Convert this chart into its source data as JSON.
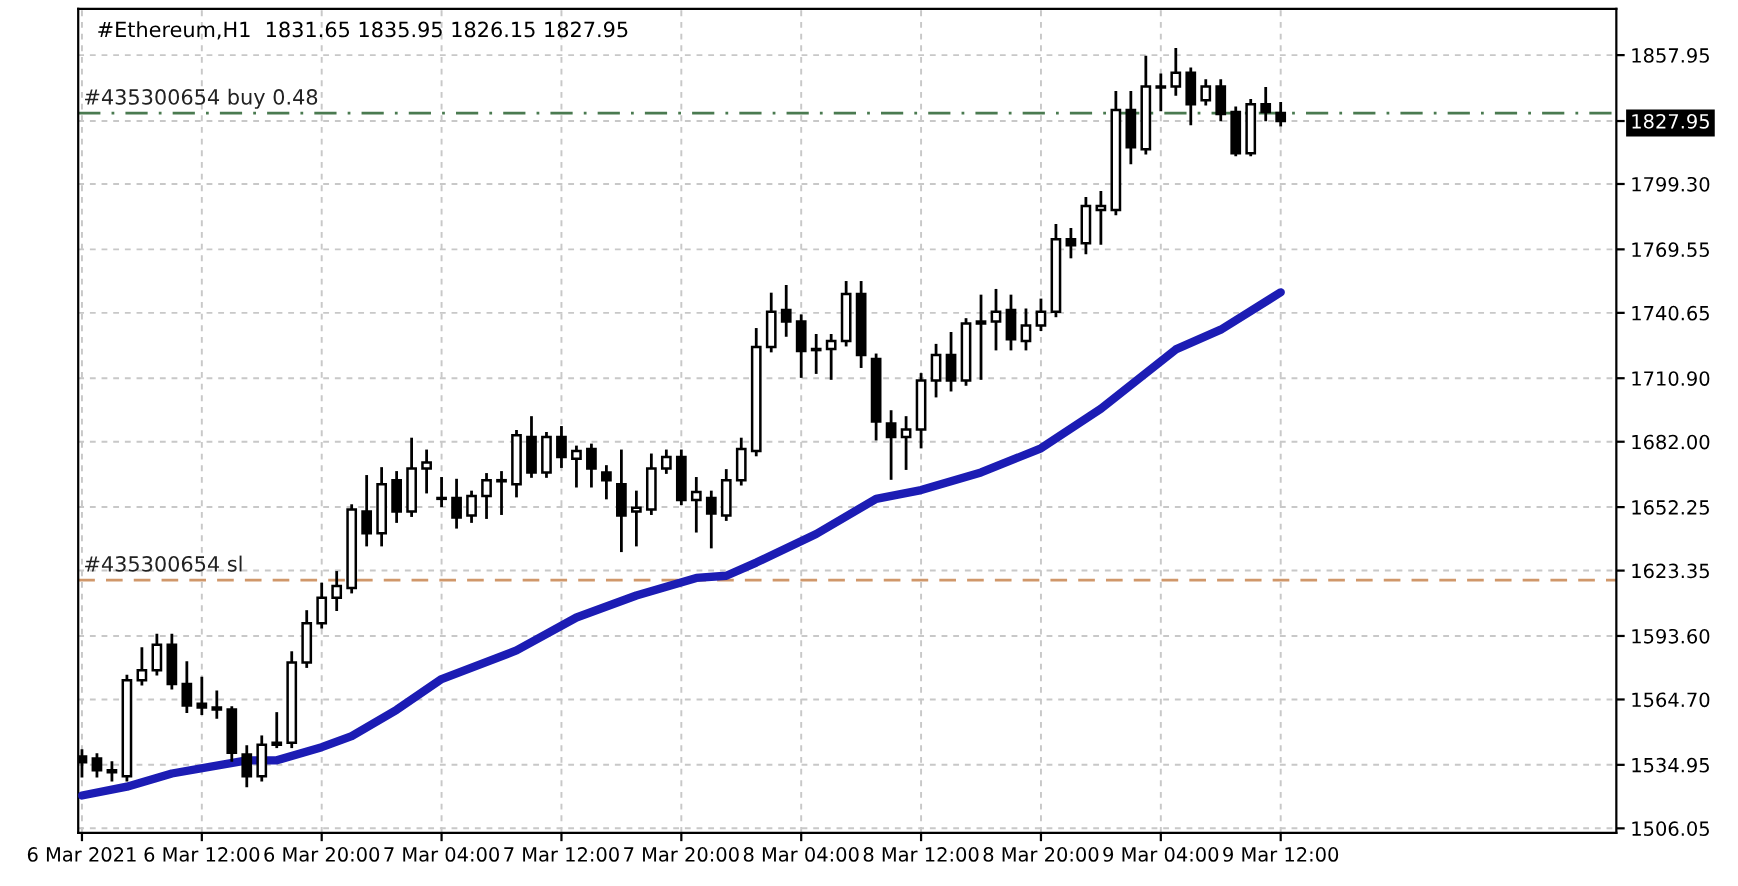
{
  "chart_data": {
    "type": "candlestick",
    "title": "#Ethereum,H1  1831.65 1835.95 1826.15 1827.95",
    "x": [
      "2021-03-06T04:00",
      "2021-03-06T05:00",
      "2021-03-06T06:00",
      "2021-03-06T07:00",
      "2021-03-06T08:00",
      "2021-03-06T09:00",
      "2021-03-06T10:00",
      "2021-03-06T11:00",
      "2021-03-06T12:00",
      "2021-03-06T13:00",
      "2021-03-06T14:00",
      "2021-03-06T15:00",
      "2021-03-06T16:00",
      "2021-03-06T17:00",
      "2021-03-06T18:00",
      "2021-03-06T19:00",
      "2021-03-06T20:00",
      "2021-03-06T21:00",
      "2021-03-06T22:00",
      "2021-03-06T23:00",
      "2021-03-07T00:00",
      "2021-03-07T01:00",
      "2021-03-07T02:00",
      "2021-03-07T03:00",
      "2021-03-07T04:00",
      "2021-03-07T05:00",
      "2021-03-07T06:00",
      "2021-03-07T07:00",
      "2021-03-07T08:00",
      "2021-03-07T09:00",
      "2021-03-07T10:00",
      "2021-03-07T11:00",
      "2021-03-07T12:00",
      "2021-03-07T13:00",
      "2021-03-07T14:00",
      "2021-03-07T15:00",
      "2021-03-07T16:00",
      "2021-03-07T17:00",
      "2021-03-07T18:00",
      "2021-03-07T19:00",
      "2021-03-07T20:00",
      "2021-03-07T21:00",
      "2021-03-07T22:00",
      "2021-03-07T23:00",
      "2021-03-08T00:00",
      "2021-03-08T01:00",
      "2021-03-08T02:00",
      "2021-03-08T03:00",
      "2021-03-08T04:00",
      "2021-03-08T05:00",
      "2021-03-08T06:00",
      "2021-03-08T07:00",
      "2021-03-08T08:00",
      "2021-03-08T09:00",
      "2021-03-08T10:00",
      "2021-03-08T11:00",
      "2021-03-08T12:00",
      "2021-03-08T13:00",
      "2021-03-08T14:00",
      "2021-03-08T15:00",
      "2021-03-08T16:00",
      "2021-03-08T17:00",
      "2021-03-08T18:00",
      "2021-03-08T19:00",
      "2021-03-08T20:00",
      "2021-03-08T21:00",
      "2021-03-08T22:00",
      "2021-03-08T23:00",
      "2021-03-09T00:00",
      "2021-03-09T01:00",
      "2021-03-09T02:00",
      "2021-03-09T03:00",
      "2021-03-09T04:00",
      "2021-03-09T05:00",
      "2021-03-09T06:00",
      "2021-03-09T07:00",
      "2021-03-09T08:00",
      "2021-03-09T09:00",
      "2021-03-09T10:00",
      "2021-03-09T11:00",
      "2021-03-09T12:00"
    ],
    "ohlc": [
      [
        1538.7,
        1541.4,
        1529.8,
        1536.1
      ],
      [
        1537.8,
        1539.6,
        1529.8,
        1532.5
      ],
      [
        1532.5,
        1536.0,
        1528.0,
        1531.6
      ],
      [
        1529.8,
        1575.3,
        1528.0,
        1573.5
      ],
      [
        1573.5,
        1587.8,
        1571.7,
        1578.0
      ],
      [
        1578.0,
        1594.0,
        1576.2,
        1589.6
      ],
      [
        1589.6,
        1594.0,
        1569.9,
        1571.7
      ],
      [
        1571.7,
        1581.5,
        1559.2,
        1561.9
      ],
      [
        1562.8,
        1574.4,
        1558.3,
        1561.0
      ],
      [
        1561.0,
        1568.2,
        1556.6,
        1560.1
      ],
      [
        1560.1,
        1561.0,
        1537.0,
        1540.5
      ],
      [
        1539.6,
        1543.2,
        1525.4,
        1529.8
      ],
      [
        1529.8,
        1547.7,
        1528.0,
        1544.1
      ],
      [
        1544.1,
        1558.3,
        1543.2,
        1545.0
      ],
      [
        1545.0,
        1586.0,
        1543.2,
        1581.5
      ],
      [
        1581.5,
        1604.7,
        1579.7,
        1599.4
      ],
      [
        1599.4,
        1617.2,
        1597.6,
        1611.0
      ],
      [
        1611.0,
        1622.5,
        1605.6,
        1616.3
      ],
      [
        1615.4,
        1652.9,
        1613.6,
        1651.1
      ],
      [
        1650.2,
        1666.2,
        1635.0,
        1640.4
      ],
      [
        1640.4,
        1669.8,
        1635.0,
        1662.7
      ],
      [
        1664.5,
        1668.0,
        1645.7,
        1650.2
      ],
      [
        1650.2,
        1683.2,
        1648.4,
        1669.8
      ],
      [
        1669.8,
        1677.8,
        1659.1,
        1672.5
      ],
      [
        1656.4,
        1665.3,
        1652.9,
        1656.0
      ],
      [
        1656.4,
        1664.5,
        1643.1,
        1647.5
      ],
      [
        1648.4,
        1659.1,
        1645.7,
        1657.3
      ],
      [
        1657.3,
        1667.1,
        1647.5,
        1664.5
      ],
      [
        1664.5,
        1668.0,
        1649.3,
        1664.0
      ],
      [
        1662.7,
        1686.7,
        1657.3,
        1685.0
      ],
      [
        1684.1,
        1693.0,
        1666.2,
        1668.0
      ],
      [
        1668.0,
        1685.8,
        1666.2,
        1684.1
      ],
      [
        1684.1,
        1688.5,
        1670.7,
        1675.1
      ],
      [
        1674.3,
        1679.6,
        1661.8,
        1677.8
      ],
      [
        1678.7,
        1680.5,
        1661.8,
        1669.8
      ],
      [
        1668.0,
        1670.7,
        1656.4,
        1664.5
      ],
      [
        1662.7,
        1677.8,
        1632.4,
        1648.4
      ],
      [
        1650.2,
        1659.1,
        1635.0,
        1652.0
      ],
      [
        1651.1,
        1676.0,
        1649.3,
        1669.8
      ],
      [
        1669.8,
        1677.8,
        1668.0,
        1675.1
      ],
      [
        1675.1,
        1677.8,
        1653.8,
        1655.5
      ],
      [
        1655.5,
        1665.3,
        1641.3,
        1659.1
      ],
      [
        1656.4,
        1659.1,
        1634.1,
        1649.3
      ],
      [
        1648.4,
        1668.9,
        1646.6,
        1664.5
      ],
      [
        1664.5,
        1683.2,
        1662.7,
        1678.7
      ],
      [
        1677.8,
        1733.1,
        1676.0,
        1725.1
      ],
      [
        1725.1,
        1749.2,
        1723.3,
        1741.1
      ],
      [
        1742.0,
        1752.7,
        1730.4,
        1736.7
      ],
      [
        1736.7,
        1739.3,
        1711.7,
        1723.3
      ],
      [
        1724.2,
        1730.4,
        1713.5,
        1723.7
      ],
      [
        1724.2,
        1730.4,
        1710.8,
        1727.8
      ],
      [
        1727.8,
        1754.5,
        1726.0,
        1749.2
      ],
      [
        1749.2,
        1754.5,
        1716.2,
        1721.5
      ],
      [
        1719.7,
        1721.5,
        1683.2,
        1691.2
      ],
      [
        1690.3,
        1695.7,
        1665.3,
        1684.1
      ],
      [
        1684.1,
        1693.0,
        1669.8,
        1687.6
      ],
      [
        1687.6,
        1712.6,
        1679.6,
        1709.9
      ],
      [
        1709.9,
        1725.9,
        1702.8,
        1721.5
      ],
      [
        1721.5,
        1731.3,
        1705.5,
        1709.9
      ],
      [
        1709.9,
        1737.6,
        1708.1,
        1735.8
      ],
      [
        1735.8,
        1748.3,
        1710.8,
        1736.7
      ],
      [
        1736.7,
        1750.9,
        1724.2,
        1741.1
      ],
      [
        1742.0,
        1748.3,
        1724.2,
        1728.6
      ],
      [
        1727.8,
        1742.0,
        1724.2,
        1734.9
      ],
      [
        1734.9,
        1746.5,
        1733.0,
        1741.1
      ],
      [
        1741.1,
        1780.4,
        1739.3,
        1774.1
      ],
      [
        1774.1,
        1778.6,
        1766.1,
        1771.4
      ],
      [
        1772.3,
        1792.8,
        1767.9,
        1789.3
      ],
      [
        1787.5,
        1795.5,
        1772.3,
        1789.3
      ],
      [
        1787.5,
        1841.0,
        1785.7,
        1833.0
      ],
      [
        1833.0,
        1841.0,
        1808.9,
        1816.0
      ],
      [
        1815.1,
        1857.0,
        1813.3,
        1843.7
      ],
      [
        1843.7,
        1849.0,
        1833.0,
        1843.2
      ],
      [
        1843.7,
        1860.6,
        1840.1,
        1849.9
      ],
      [
        1849.9,
        1851.7,
        1826.7,
        1835.6
      ],
      [
        1837.4,
        1846.3,
        1835.6,
        1843.7
      ],
      [
        1843.7,
        1846.3,
        1828.5,
        1831.2
      ],
      [
        1832.1,
        1833.9,
        1812.5,
        1813.3
      ],
      [
        1813.3,
        1837.4,
        1812.5,
        1835.6
      ],
      [
        1835.6,
        1842.8,
        1828.5,
        1832.1
      ],
      [
        1831.65,
        1835.95,
        1826.15,
        1827.95
      ]
    ],
    "series": [
      {
        "type": "line",
        "color": "#1c1cb4",
        "x": [
          "2021-03-06T04:00",
          "2021-03-06T07:00",
          "2021-03-06T10:00",
          "2021-03-06T15:00",
          "2021-03-06T17:00",
          "2021-03-06T20:00",
          "2021-03-06T22:00",
          "2021-03-07T01:00",
          "2021-03-07T04:00",
          "2021-03-07T09:00",
          "2021-03-07T13:00",
          "2021-03-07T17:00",
          "2021-03-07T21:00",
          "2021-03-07T23:00",
          "2021-03-08T01:00",
          "2021-03-08T05:00",
          "2021-03-08T09:00",
          "2021-03-08T12:00",
          "2021-03-08T16:00",
          "2021-03-08T20:00",
          "2021-03-09T00:00",
          "2021-03-09T05:00",
          "2021-03-09T08:00",
          "2021-03-09T12:00"
        ],
        "values": [
          1521,
          1525,
          1531,
          1537,
          1537,
          1543,
          1548,
          1560,
          1574,
          1587,
          1602,
          1612,
          1620,
          1621,
          1627,
          1640,
          1656,
          1660,
          1668,
          1679,
          1697,
          1724,
          1733,
          1750
        ]
      }
    ],
    "ref_lines": [
      {
        "axis": "y",
        "value": 1831.5,
        "label": "#435300654 buy 0.48",
        "color": "#4a7a50",
        "line_style": "dashdot"
      },
      {
        "axis": "y",
        "value": 1619.0,
        "label": "#435300654 sl",
        "color": "#d0976a",
        "line_style": "dashed"
      }
    ],
    "xlim": [
      "2021-03-06T03:45",
      "2021-03-10T10:24"
    ],
    "xticks": [
      {
        "value": "2021-03-06T04:00",
        "label": "6 Mar 2021"
      },
      {
        "value": "2021-03-06T12:00",
        "label": "6 Mar 12:00"
      },
      {
        "value": "2021-03-06T20:00",
        "label": "6 Mar 20:00"
      },
      {
        "value": "2021-03-07T04:00",
        "label": "7 Mar 04:00"
      },
      {
        "value": "2021-03-07T12:00",
        "label": "7 Mar 12:00"
      },
      {
        "value": "2021-03-07T20:00",
        "label": "7 Mar 20:00"
      },
      {
        "value": "2021-03-08T04:00",
        "label": "8 Mar 04:00"
      },
      {
        "value": "2021-03-08T12:00",
        "label": "8 Mar 12:00"
      },
      {
        "value": "2021-03-08T20:00",
        "label": "8 Mar 20:00"
      },
      {
        "value": "2021-03-09T04:00",
        "label": "9 Mar 04:00"
      },
      {
        "value": "2021-03-09T12:00",
        "label": "9 Mar 12:00"
      }
    ],
    "ylim": [
      1504,
      1879
    ],
    "yticks": [
      {
        "value": 1506.05,
        "label": "1506.05"
      },
      {
        "value": 1534.95,
        "label": "1534.95"
      },
      {
        "value": 1564.7,
        "label": "1564.70"
      },
      {
        "value": 1593.6,
        "label": "1593.60"
      },
      {
        "value": 1623.35,
        "label": "1623.35"
      },
      {
        "value": 1652.25,
        "label": "1652.25"
      },
      {
        "value": 1682.0,
        "label": "1682.00"
      },
      {
        "value": 1710.9,
        "label": "1710.90"
      },
      {
        "value": 1740.65,
        "label": "1740.65"
      },
      {
        "value": 1769.55,
        "label": "1769.55"
      },
      {
        "value": 1799.3,
        "label": "1799.30"
      },
      {
        "value": 1827.95,
        "label": "1827.95"
      },
      {
        "value": 1857.95,
        "label": "1857.95"
      }
    ],
    "grid": true,
    "legend": false
  }
}
